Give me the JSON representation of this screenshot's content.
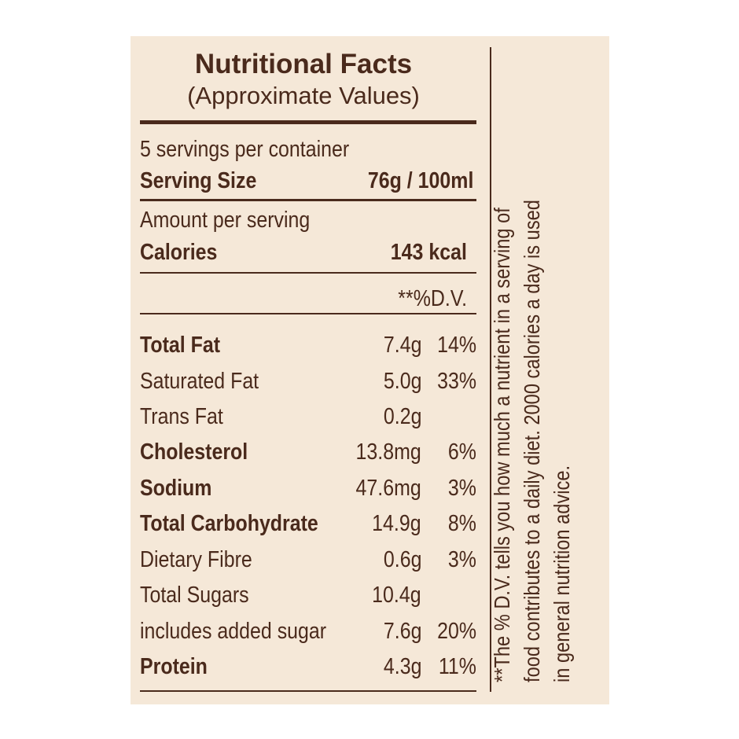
{
  "header": {
    "title": "Nutritional Facts",
    "subtitle": "(Approximate Values)"
  },
  "serving": {
    "per_container": "5 servings per container",
    "size_label": "Serving Size",
    "size_value": "76g / 100ml"
  },
  "calories": {
    "amount_label": "Amount per serving",
    "label": "Calories",
    "value": "143 kcal"
  },
  "dv_header": "**%D.V.",
  "nutrients": [
    {
      "name": "Total Fat",
      "amount": "7.4g",
      "dv": "14%"
    },
    {
      "name": "Saturated Fat",
      "amount": "5.0g",
      "dv": "33%"
    },
    {
      "name": "Trans Fat",
      "amount": "0.2g",
      "dv": ""
    },
    {
      "name": "Cholesterol",
      "amount": "13.8mg",
      "dv": "6%"
    },
    {
      "name": "Sodium",
      "amount": "47.6mg",
      "dv": "3%"
    },
    {
      "name": "Total Carbohydrate",
      "amount": "14.9g",
      "dv": "8%"
    },
    {
      "name": "Dietary Fibre",
      "amount": "0.6g",
      "dv": "3%"
    },
    {
      "name": "Total Sugars",
      "amount": "10.4g",
      "dv": ""
    },
    {
      "name": "includes added sugar",
      "amount": "7.6g",
      "dv": "20%"
    },
    {
      "name": "Protein",
      "amount": "4.3g",
      "dv": "11%"
    }
  ],
  "footnote": {
    "line1": "**The % D.V. tells you how much a nutrient in a serving of",
    "line2": "food contributes to a daily diet. 2000 calories a day is used",
    "line3": "in general nutrition advice."
  },
  "colors": {
    "background": "#f5e8d8",
    "text": "#4a2a1c"
  }
}
